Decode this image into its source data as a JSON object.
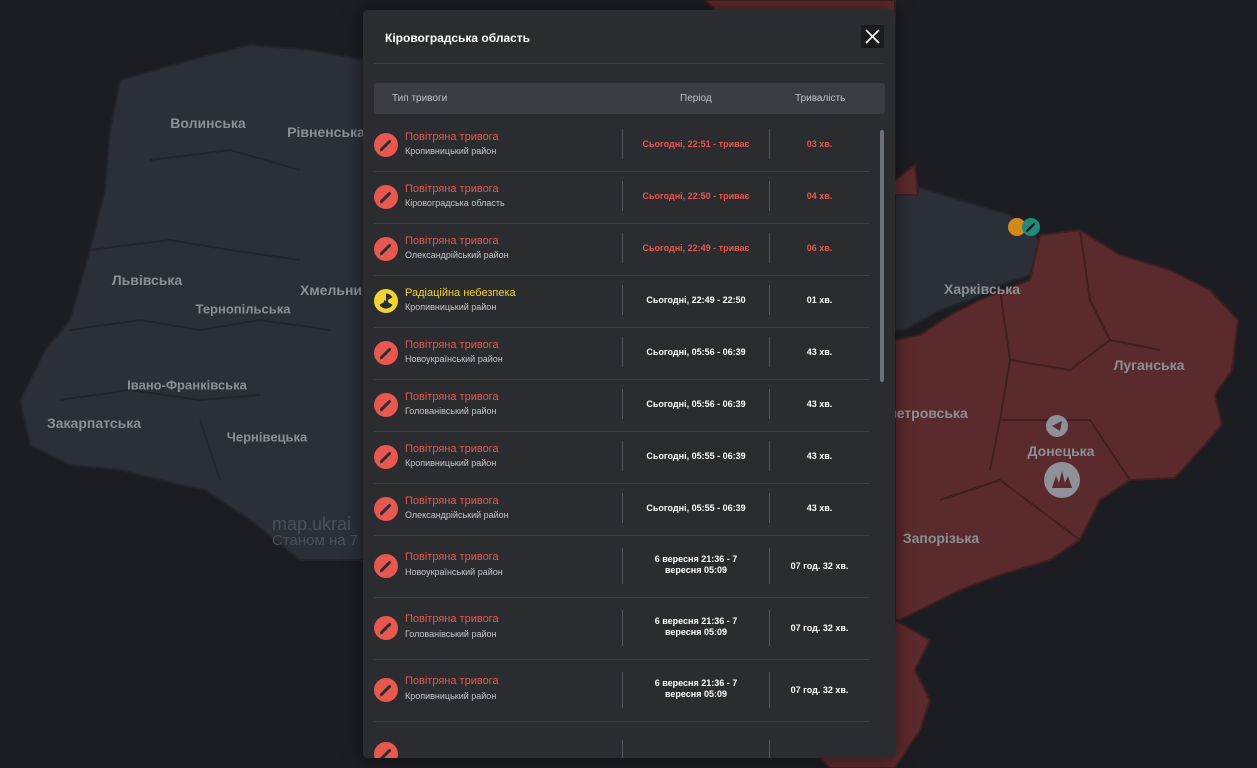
{
  "modal": {
    "title": "Кіровоградська область",
    "close_icon": "close-icon",
    "columns": {
      "type": "Тип тривоги",
      "period": "Період",
      "duration": "Тривалість"
    },
    "rows": [
      {
        "icon": "rocket-icon",
        "kind": "air",
        "type": "Повітряна тривога",
        "area": "Кропивницький район",
        "period": "Сьогодні, 22:51 - триває",
        "duration": "03 хв.",
        "active": true
      },
      {
        "icon": "rocket-icon",
        "kind": "air",
        "type": "Повітряна тривога",
        "area": "Кіровоградська область",
        "period": "Сьогодні, 22:50 - триває",
        "duration": "04 хв.",
        "active": true
      },
      {
        "icon": "rocket-icon",
        "kind": "air",
        "type": "Повітряна тривога",
        "area": "Олександрійський район",
        "period": "Сьогодні, 22:49 - триває",
        "duration": "06 хв.",
        "active": true
      },
      {
        "icon": "radiation-icon",
        "kind": "radiation",
        "type": "Радіаційна небезпека",
        "area": "Кропивницький район",
        "period": "Сьогодні, 22:49 - 22:50",
        "duration": "01 хв.",
        "active": false
      },
      {
        "icon": "rocket-icon",
        "kind": "air",
        "type": "Повітряна тривога",
        "area": "Новоукраїнський район",
        "period": "Сьогодні, 05:56 - 06:39",
        "duration": "43 хв.",
        "active": false
      },
      {
        "icon": "rocket-icon",
        "kind": "air",
        "type": "Повітряна тривога",
        "area": "Голованівський район",
        "period": "Сьогодні, 05:56 - 06:39",
        "duration": "43 хв.",
        "active": false
      },
      {
        "icon": "rocket-icon",
        "kind": "air",
        "type": "Повітряна тривога",
        "area": "Кропивницький район",
        "period": "Сьогодні, 05:55 - 06:39",
        "duration": "43 хв.",
        "active": false
      },
      {
        "icon": "rocket-icon",
        "kind": "air",
        "type": "Повітряна тривога",
        "area": "Олександрійський район",
        "period": "Сьогодні, 05:55 - 06:39",
        "duration": "43 хв.",
        "active": false
      },
      {
        "icon": "rocket-icon",
        "kind": "air",
        "type": "Повітряна тривога",
        "area": "Новоукраїнський район",
        "period_line1": "6 вересня 21:36 - 7",
        "period_line2": "вересня 05:09",
        "duration": "07 год. 32 хв.",
        "active": false,
        "tall": true
      },
      {
        "icon": "rocket-icon",
        "kind": "air",
        "type": "Повітряна тривога",
        "area": "Голованівський район",
        "period_line1": "6 вересня 21:36 - 7",
        "period_line2": "вересня 05:09",
        "duration": "07 год. 32 хв.",
        "active": false,
        "tall": true
      },
      {
        "icon": "rocket-icon",
        "kind": "air",
        "type": "Повітряна тривога",
        "area": "Кропивницький район",
        "period_line1": "6 вересня 21:36 - 7",
        "period_line2": "вересня 05:09",
        "duration": "07 год. 32 хв.",
        "active": false,
        "tall": true
      }
    ]
  },
  "map": {
    "regions": {
      "volynska": "Волинська",
      "rivnenska": "Рівненська",
      "lvivska": "Львівська",
      "ternopilska": "Тернопільська",
      "khmelnytska": "Хмельни",
      "ivano_frankivska": "Івано-Франківська",
      "zakarpatska": "Закарпатська",
      "chernivetska": "Чернівецька",
      "kharkivska": "Харківська",
      "luhanska": "Луганська",
      "dnipropetrovska": "петровська",
      "donetska": "Донецька",
      "zaporizka": "Запорізька"
    },
    "watermark_line1": "map.ukrai",
    "watermark_line2": "Станом на 7"
  },
  "colors": {
    "alert_red": "#e8584e",
    "radiation_yellow": "#f1d334",
    "map_alert_fill": "#5b2a2c",
    "map_calm_fill": "#2b2f37"
  }
}
